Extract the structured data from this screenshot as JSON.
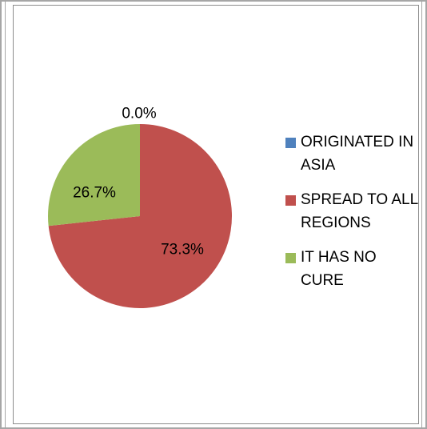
{
  "chart_data": {
    "type": "pie",
    "title": "",
    "categories": [
      "ORIGINATED IN ASIA",
      "SPREAD TO ALL REGIONS",
      "IT HAS NO CURE"
    ],
    "values": [
      0.0,
      73.3,
      26.7
    ],
    "data_labels": [
      "0.0%",
      "73.3%",
      "26.7%"
    ],
    "colors": [
      "#4f81bd",
      "#c0504d",
      "#9bbb59"
    ],
    "legend_position": "right"
  },
  "legend": {
    "items": [
      {
        "label": "ORIGINATED IN ASIA",
        "color": "#4f81bd"
      },
      {
        "label": "SPREAD TO ALL REGIONS",
        "color": "#c0504d"
      },
      {
        "label": "IT HAS NO CURE",
        "color": "#9bbb59"
      }
    ]
  }
}
